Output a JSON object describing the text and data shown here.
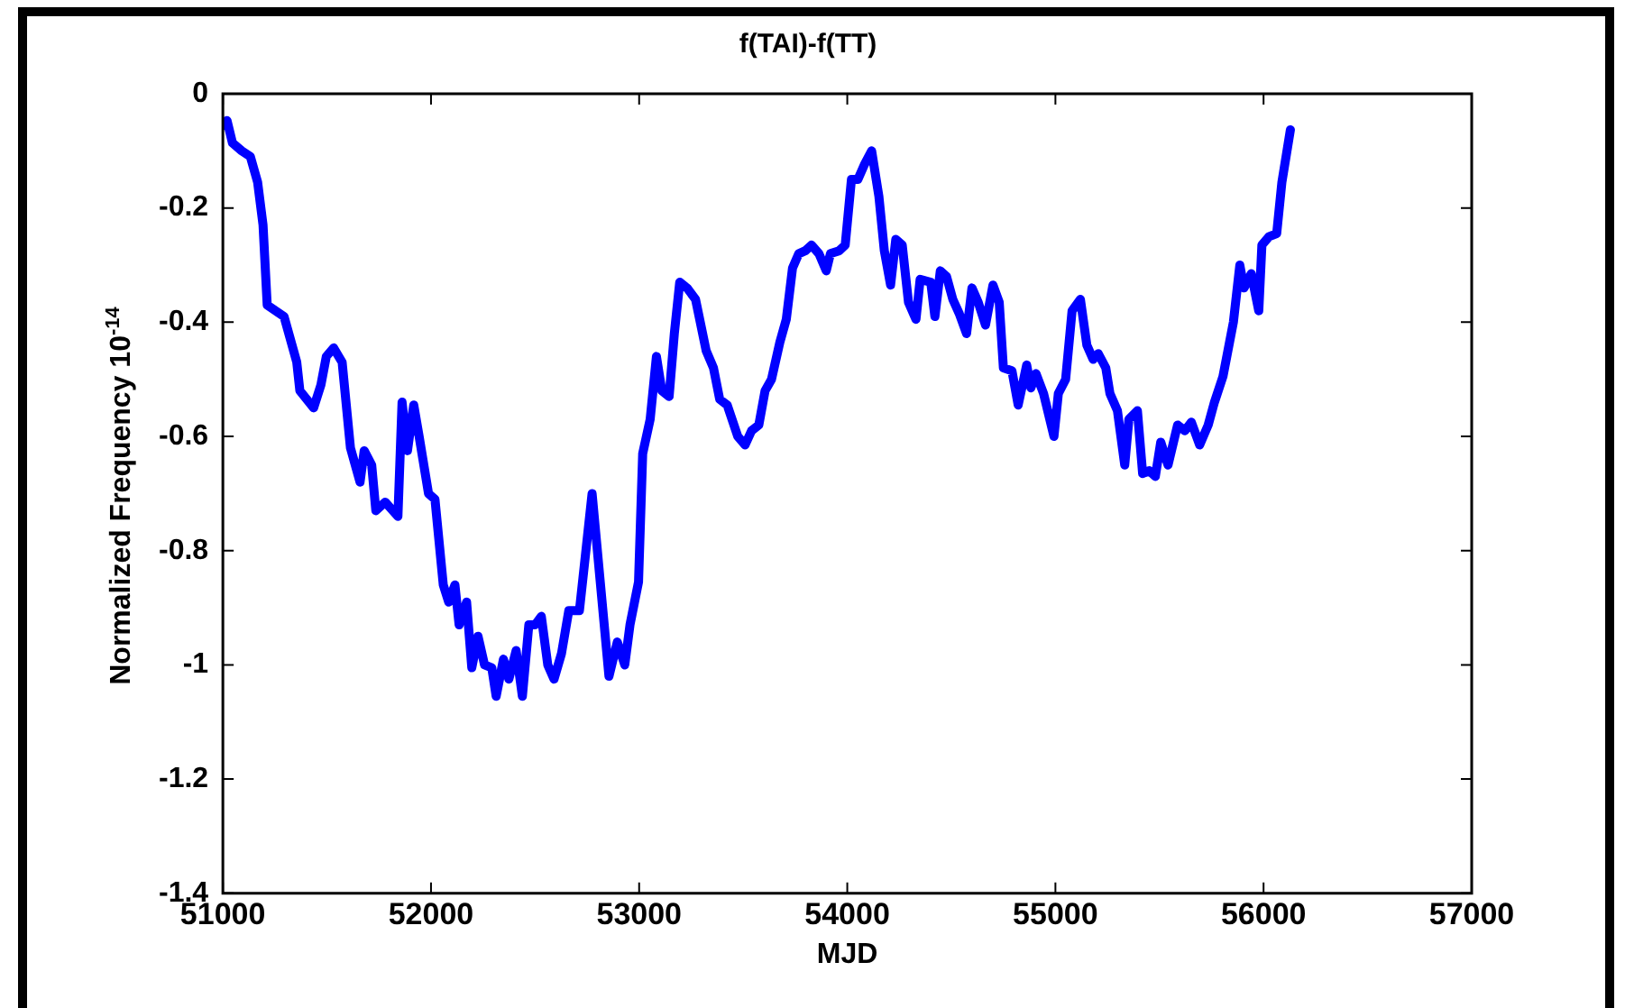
{
  "chart_data": {
    "type": "line",
    "title": "f(TAI)-f(TT)",
    "xlabel": "MJD",
    "ylabel": "Normalized Frequency 10$^{-14}$",
    "xlim": [
      51000,
      57000
    ],
    "xticks": [
      51000,
      52000,
      53000,
      54000,
      55000,
      56000,
      57000
    ],
    "ylim": [
      -1.4,
      0
    ],
    "yticks": [
      -1.4,
      -1.2,
      -1,
      -0.8,
      -0.6,
      -0.4,
      -0.2,
      0
    ],
    "grid": false,
    "legend": false,
    "marker": "none",
    "line_style": "solid",
    "x": [
      51000,
      51020,
      51046,
      51091,
      51132,
      51167,
      51193,
      51213,
      51294,
      51355,
      51370,
      51436,
      51471,
      51497,
      51532,
      51573,
      51613,
      51659,
      51679,
      51715,
      51735,
      51780,
      51841,
      51861,
      51887,
      51917,
      51943,
      51988,
      52019,
      52059,
      52085,
      52115,
      52135,
      52171,
      52196,
      52226,
      52257,
      52292,
      52313,
      52348,
      52374,
      52409,
      52439,
      52470,
      52500,
      52530,
      52561,
      52591,
      52627,
      52662,
      52713,
      52774,
      52855,
      52895,
      52931,
      52956,
      52997,
      53017,
      53053,
      53083,
      53109,
      53144,
      53169,
      53195,
      53230,
      53271,
      53322,
      53357,
      53387,
      53423,
      53474,
      53509,
      53540,
      53575,
      53605,
      53636,
      53676,
      53707,
      53737,
      53767,
      53798,
      53828,
      53864,
      53899,
      53919,
      53960,
      53990,
      54020,
      54051,
      54081,
      54117,
      54152,
      54178,
      54208,
      54233,
      54264,
      54294,
      54330,
      54350,
      54401,
      54421,
      54447,
      54477,
      54507,
      54538,
      54573,
      54599,
      54629,
      54664,
      54700,
      54730,
      54750,
      54791,
      54821,
      54862,
      54882,
      54907,
      54943,
      54993,
      55014,
      55049,
      55080,
      55120,
      55151,
      55181,
      55206,
      55242,
      55262,
      55298,
      55333,
      55353,
      55394,
      55419,
      55450,
      55480,
      55506,
      55541,
      55587,
      55622,
      55653,
      55693,
      55734,
      55764,
      55805,
      55855,
      55886,
      55906,
      55941,
      55977,
      55992,
      56027,
      56063,
      56088,
      56129
    ],
    "series": [
      {
        "color": "#0000ff",
        "values": [
          -0.056,
          -0.047,
          -0.086,
          -0.1,
          -0.11,
          -0.155,
          -0.23,
          -0.37,
          -0.39,
          -0.47,
          -0.52,
          -0.55,
          -0.51,
          -0.46,
          -0.445,
          -0.47,
          -0.62,
          -0.68,
          -0.625,
          -0.65,
          -0.73,
          -0.715,
          -0.74,
          -0.54,
          -0.625,
          -0.545,
          -0.6,
          -0.7,
          -0.71,
          -0.86,
          -0.89,
          -0.86,
          -0.93,
          -0.89,
          -1.005,
          -0.95,
          -1,
          -1.005,
          -1.055,
          -0.99,
          -1.025,
          -0.975,
          -1.055,
          -0.93,
          -0.93,
          -0.915,
          -1,
          -1.025,
          -0.98,
          -0.905,
          -0.905,
          -0.7,
          -1.02,
          -0.96,
          -1,
          -0.93,
          -0.855,
          -0.63,
          -0.57,
          -0.46,
          -0.52,
          -0.53,
          -0.42,
          -0.33,
          -0.34,
          -0.36,
          -0.45,
          -0.48,
          -0.535,
          -0.545,
          -0.6,
          -0.615,
          -0.59,
          -0.58,
          -0.52,
          -0.5,
          -0.435,
          -0.395,
          -0.305,
          -0.28,
          -0.275,
          -0.265,
          -0.28,
          -0.31,
          -0.28,
          -0.275,
          -0.265,
          -0.15,
          -0.15,
          -0.125,
          -0.1,
          -0.18,
          -0.275,
          -0.335,
          -0.255,
          -0.265,
          -0.365,
          -0.395,
          -0.325,
          -0.33,
          -0.39,
          -0.31,
          -0.32,
          -0.36,
          -0.385,
          -0.42,
          -0.34,
          -0.365,
          -0.405,
          -0.335,
          -0.365,
          -0.48,
          -0.485,
          -0.545,
          -0.475,
          -0.515,
          -0.49,
          -0.525,
          -0.6,
          -0.525,
          -0.5,
          -0.38,
          -0.36,
          -0.44,
          -0.465,
          -0.455,
          -0.48,
          -0.525,
          -0.555,
          -0.65,
          -0.57,
          -0.555,
          -0.665,
          -0.66,
          -0.67,
          -0.61,
          -0.65,
          -0.58,
          -0.59,
          -0.575,
          -0.615,
          -0.58,
          -0.54,
          -0.495,
          -0.4,
          -0.3,
          -0.34,
          -0.315,
          -0.38,
          -0.265,
          -0.25,
          -0.245,
          -0.155,
          -0.063
        ]
      }
    ]
  }
}
